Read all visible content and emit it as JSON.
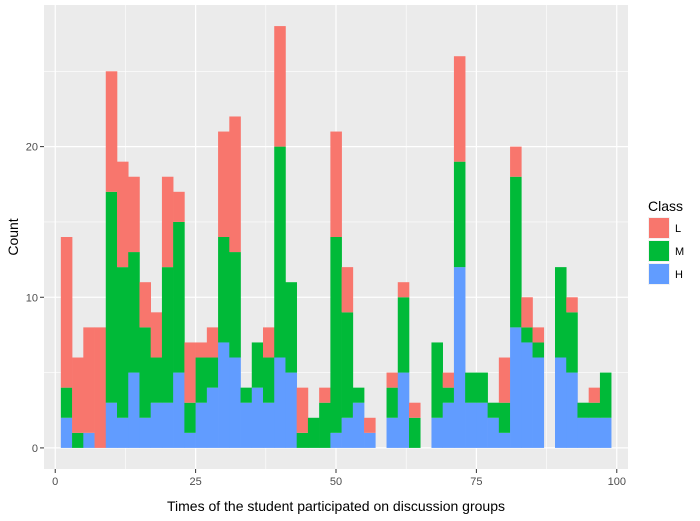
{
  "chart_data": {
    "type": "bar",
    "stacked": true,
    "xlabel": "Times of the student participated on discussion groups",
    "ylabel": "Count",
    "xlim": [
      -2,
      102
    ],
    "ylim": [
      -1.4,
      29.4
    ],
    "x_ticks": [
      0,
      25,
      50,
      75,
      100
    ],
    "y_ticks": [
      0,
      10,
      20
    ],
    "bin_width": 2,
    "grid": true,
    "legend": {
      "title": "Class",
      "position": "right",
      "entries": [
        "L",
        "M",
        "H"
      ]
    },
    "colors": {
      "L": "#f8766d",
      "M": "#00ba38",
      "H": "#619cff",
      "panel": "#ebebeb",
      "grid": "#ffffff"
    },
    "bins_x": [
      2,
      4,
      6,
      8,
      10,
      12,
      14,
      16,
      18,
      20,
      22,
      24,
      26,
      28,
      30,
      32,
      34,
      36,
      38,
      40,
      42,
      44,
      46,
      48,
      50,
      52,
      54,
      56,
      58,
      60,
      62,
      64,
      66,
      68,
      70,
      72,
      74,
      76,
      78,
      80,
      82,
      84,
      86,
      88,
      90,
      92,
      94,
      96,
      98
    ],
    "series": [
      {
        "name": "H",
        "values": [
          2,
          0,
          1,
          0,
          3,
          2,
          5,
          2,
          3,
          3,
          5,
          1,
          3,
          4,
          7,
          6,
          3,
          4,
          3,
          6,
          5,
          0,
          0,
          0,
          1,
          2,
          3,
          1,
          0,
          2,
          5,
          0,
          0,
          2,
          3,
          12,
          3,
          3,
          2,
          1,
          8,
          7,
          6,
          0,
          6,
          5,
          2,
          2,
          2
        ]
      },
      {
        "name": "M",
        "values": [
          2,
          1,
          0,
          0,
          14,
          10,
          8,
          6,
          3,
          9,
          10,
          2,
          3,
          2,
          7,
          7,
          1,
          3,
          3,
          14,
          6,
          1,
          2,
          3,
          13,
          7,
          1,
          0,
          0,
          2,
          5,
          2,
          0,
          5,
          1,
          7,
          2,
          2,
          1,
          2,
          10,
          1,
          1,
          0,
          6,
          4,
          1,
          1,
          3
        ]
      },
      {
        "name": "L",
        "values": [
          10,
          5,
          7,
          8,
          8,
          7,
          5,
          3,
          3,
          6,
          2,
          4,
          1,
          2,
          7,
          9,
          0,
          0,
          2,
          8,
          0,
          3,
          0,
          1,
          7,
          3,
          0,
          1,
          0,
          1,
          1,
          1,
          0,
          0,
          1,
          7,
          0,
          0,
          0,
          3,
          2,
          2,
          1,
          0,
          0,
          1,
          0,
          1,
          0
        ]
      }
    ]
  }
}
